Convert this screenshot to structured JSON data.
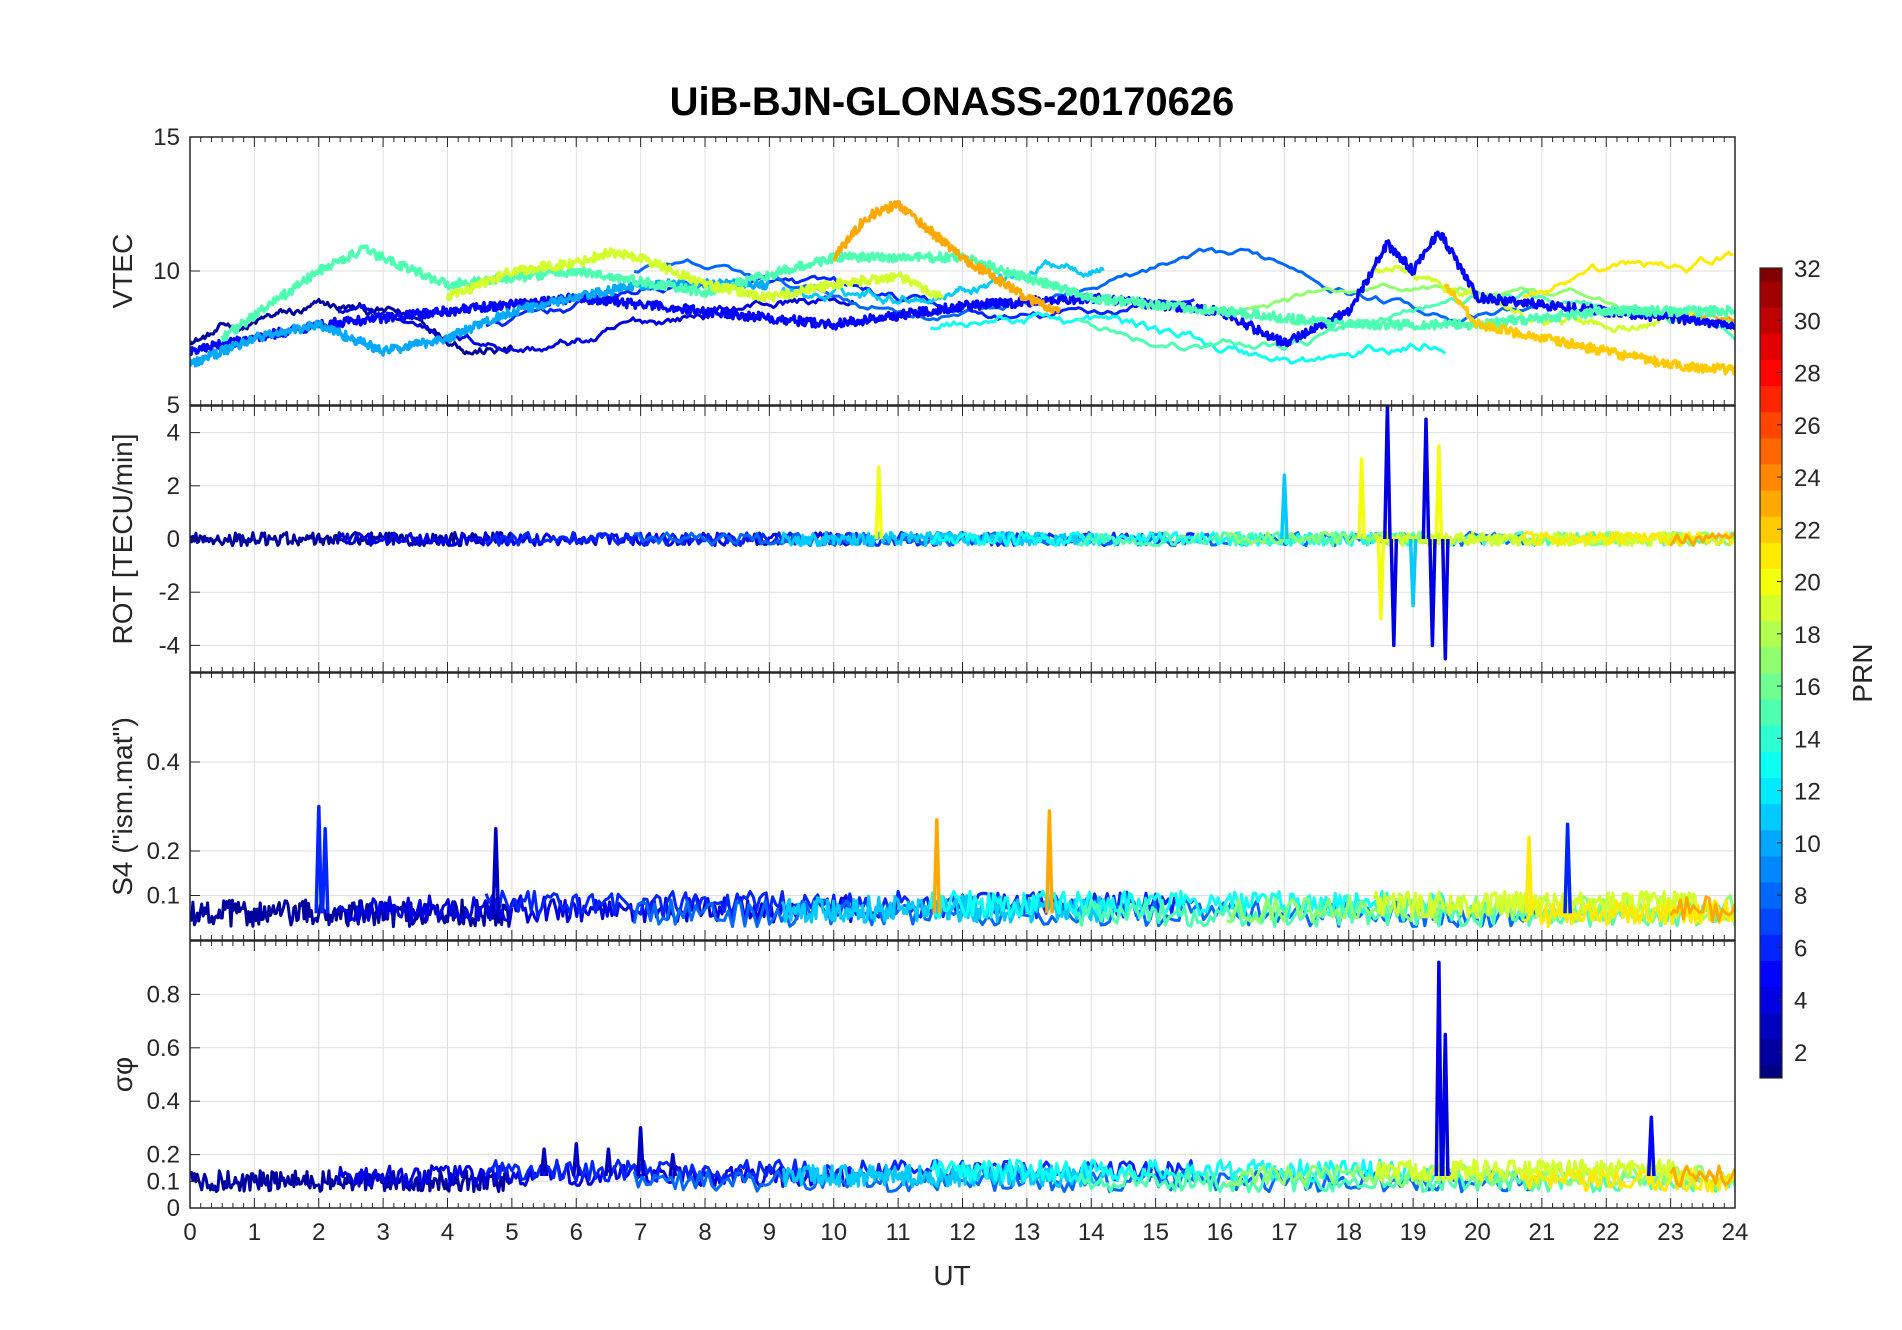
{
  "chart_data": {
    "type": "line",
    "title": "UiB-BJN-GLONASS-20170626",
    "xlabel": "UT",
    "xlim": [
      0,
      24
    ],
    "xticks": [
      0,
      1,
      2,
      3,
      4,
      5,
      6,
      7,
      8,
      9,
      10,
      11,
      12,
      13,
      14,
      15,
      16,
      17,
      18,
      19,
      20,
      21,
      22,
      23,
      24
    ],
    "grid": true,
    "panels": [
      {
        "id": "vtec",
        "ylabel": "VTEC",
        "ylim": [
          5,
          15
        ],
        "yticks": [
          {
            "v": 5,
            "t": "5"
          },
          {
            "v": 10,
            "t": "10"
          },
          {
            "v": 15,
            "t": "15"
          }
        ],
        "series_summary": [
          {
            "prn": 5,
            "x": [
              0,
              2,
              4,
              6,
              8,
              10,
              12,
              14,
              16,
              17,
              18,
              18.6,
              19,
              19.4,
              20,
              22,
              24
            ],
            "y": [
              7,
              8,
              8.5,
              9,
              8.5,
              8,
              8.7,
              9,
              8.5,
              7.3,
              8.5,
              11,
              10,
              11.5,
              9,
              8.5,
              8
            ]
          },
          {
            "prn": 10,
            "x": [
              0,
              1,
              2,
              3,
              4,
              5,
              6,
              7,
              8,
              9
            ],
            "y": [
              6.5,
              7.5,
              8,
              7,
              7.5,
              8.5,
              9,
              9.5,
              9.5,
              9.5
            ]
          },
          {
            "prn": 15,
            "x": [
              0.5,
              2,
              2.7,
              4,
              6,
              8,
              10,
              12,
              14,
              16,
              18,
              20,
              22,
              24
            ],
            "y": [
              7.5,
              10,
              10.8,
              9.5,
              10,
              9.2,
              10.5,
              10.5,
              9,
              8.5,
              8,
              8,
              8.5,
              8.5
            ]
          },
          {
            "prn": 19,
            "x": [
              4,
              5,
              6,
              6.5,
              7,
              8,
              9,
              10,
              11,
              11.7
            ],
            "y": [
              9,
              10,
              10.3,
              10.7,
              10.5,
              9.5,
              9,
              9.5,
              9.8,
              9
            ]
          },
          {
            "prn": 23,
            "x": [
              10,
              10.5,
              11,
              11.5,
              12,
              13,
              13.5
            ],
            "y": [
              10.5,
              12,
              12.5,
              11.5,
              10.5,
              9,
              8.5
            ]
          },
          {
            "prn": 22,
            "x": [
              19.5,
              20,
              21,
              22,
              23,
              24
            ],
            "y": [
              9.5,
              8,
              7.5,
              7,
              6.5,
              6.3
            ]
          }
        ]
      },
      {
        "id": "rot",
        "ylabel": "ROT [TECU/min]",
        "ylim": [
          -5,
          5
        ],
        "yticks": [
          {
            "v": -4,
            "t": "-4"
          },
          {
            "v": -2,
            "t": "-2"
          },
          {
            "v": 0,
            "t": "0"
          },
          {
            "v": 2,
            "t": "2"
          },
          {
            "v": 4,
            "t": "4"
          }
        ],
        "series_summary": [
          {
            "prn": 4,
            "x": [
              18.6,
              18.7,
              19.2,
              19.3,
              19.5
            ],
            "y": [
              5,
              -4,
              4.5,
              -4,
              -4.5
            ]
          },
          {
            "prn": 20,
            "x": [
              10.7,
              18.2,
              18.5,
              19.4
            ],
            "y": [
              2.7,
              3,
              -3,
              3.5
            ]
          },
          {
            "prn": 11,
            "x": [
              17.0,
              19.0
            ],
            "y": [
              2.4,
              -2.5
            ]
          }
        ]
      },
      {
        "id": "s4",
        "ylabel": "S4 (\"ism.mat\")",
        "ylim": [
          0,
          0.6
        ],
        "yticks": [
          {
            "v": 0.1,
            "t": "0.1"
          },
          {
            "v": 0.2,
            "t": "0.2"
          },
          {
            "v": 0.4,
            "t": "0.4"
          }
        ],
        "series_summary": [
          {
            "prn": 6,
            "x": [
              2.0,
              2.1
            ],
            "y": [
              0.3,
              0.25
            ]
          },
          {
            "prn": 3,
            "x": [
              4.75
            ],
            "y": [
              0.25
            ]
          },
          {
            "prn": 23,
            "x": [
              11.6,
              13.35
            ],
            "y": [
              0.27,
              0.29
            ]
          },
          {
            "prn": 21,
            "x": [
              20.8
            ],
            "y": [
              0.23
            ]
          },
          {
            "prn": 6,
            "x": [
              21.4
            ],
            "y": [
              0.26
            ]
          }
        ]
      },
      {
        "id": "sigma",
        "ylabel": "σφ",
        "ylim": [
          0,
          1
        ],
        "yticks": [
          {
            "v": 0,
            "t": "0"
          },
          {
            "v": 0.1,
            "t": "0.1"
          },
          {
            "v": 0.2,
            "t": "0.2"
          },
          {
            "v": 0.4,
            "t": "0.4"
          },
          {
            "v": 0.6,
            "t": "0.6"
          },
          {
            "v": 0.8,
            "t": "0.8"
          }
        ],
        "series_summary": [
          {
            "prn": 4,
            "x": [
              19.4,
              19.5
            ],
            "y": [
              0.92,
              0.65
            ]
          },
          {
            "prn": 3,
            "x": [
              5.5,
              6,
              6.5,
              7,
              7.5
            ],
            "y": [
              0.22,
              0.24,
              0.22,
              0.3,
              0.2
            ]
          },
          {
            "prn": 5,
            "x": [
              22.7
            ],
            "y": [
              0.34
            ]
          }
        ]
      }
    ],
    "colorbar": {
      "label": "PRN",
      "range": [
        1,
        32
      ],
      "colormap": "jet",
      "ticks": [
        2,
        4,
        6,
        8,
        10,
        12,
        14,
        16,
        18,
        20,
        22,
        24,
        26,
        28,
        30,
        32
      ]
    }
  }
}
